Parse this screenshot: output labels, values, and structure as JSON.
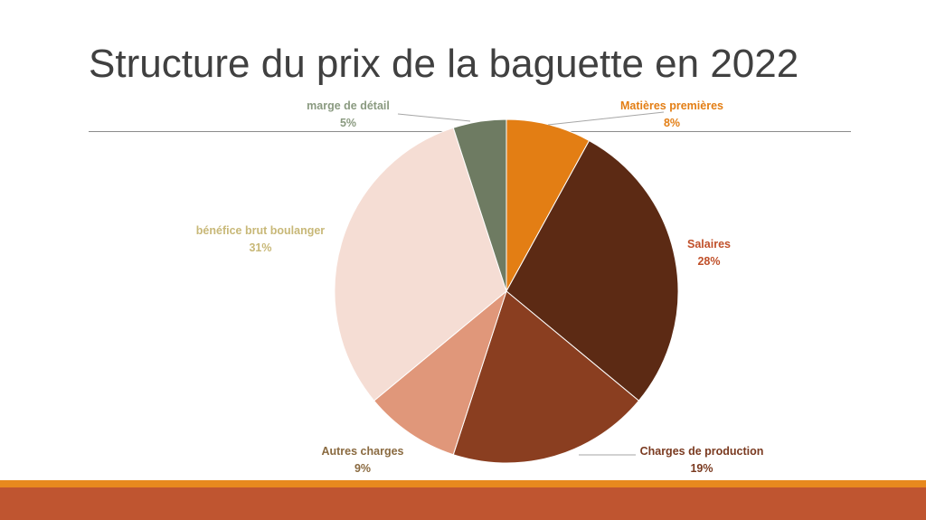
{
  "slide": {
    "title": "Structure du prix de la baguette en 2022"
  },
  "chart_data": {
    "type": "pie",
    "title": "Structure du prix de la baguette en 2022",
    "slices": [
      {
        "label": "Matières premières",
        "value": 8,
        "display": "8%",
        "color": "#E37E14",
        "label_color": "#E37E14"
      },
      {
        "label": "Salaires",
        "value": 28,
        "display": "28%",
        "color": "#5C2A14",
        "label_color": "#C0502A"
      },
      {
        "label": "Charges de production",
        "value": 19,
        "display": "19%",
        "color": "#8A3E20",
        "label_color": "#7A3A20"
      },
      {
        "label": "Autres charges",
        "value": 9,
        "display": "9%",
        "color": "#E0977A",
        "label_color": "#8A6A40"
      },
      {
        "label": "bénéfice brut boulanger",
        "value": 31,
        "display": "31%",
        "color": "#F5DDD4",
        "label_color": "#C8B878"
      },
      {
        "label": "marge de détail",
        "value": 5,
        "display": "5%",
        "color": "#6E7B62",
        "label_color": "#8A9A80"
      }
    ]
  },
  "theme": {
    "band_thin_color": "#E8891E",
    "band_thick_color": "#BF5530",
    "title_color": "#404040"
  }
}
